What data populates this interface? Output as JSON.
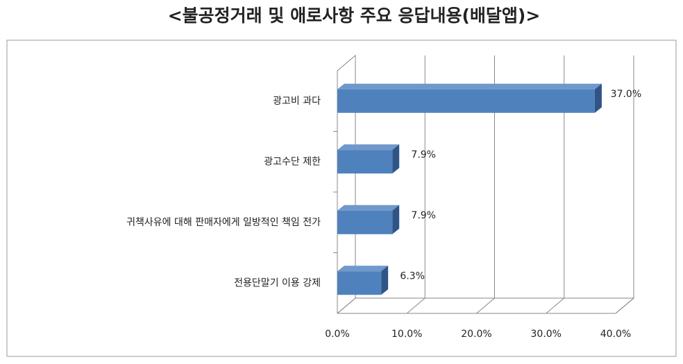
{
  "chart_data": {
    "type": "bar3d_horizontal",
    "title": "<불공정거래 및 애로사항 주요 응답내용(배달앱)>",
    "categories": [
      "광고비 과다",
      "광고수단 제한",
      "귀책사유에 대해 판매자에게 일방적인 책임 전가",
      "전용단말기 이용 강제"
    ],
    "values": [
      37.0,
      7.9,
      7.9,
      6.3
    ],
    "value_labels": [
      "37.0%",
      "7.9%",
      "7.9%",
      "6.3%"
    ],
    "color": "#4f81bd",
    "xlim": [
      0,
      40
    ],
    "xticks": [
      {
        "value": 0,
        "label": "0.0%"
      },
      {
        "value": 10,
        "label": "10.0%"
      },
      {
        "value": 20,
        "label": "20.0%"
      },
      {
        "value": 30,
        "label": "30.0%"
      },
      {
        "value": 40,
        "label": "40.0%"
      }
    ],
    "grid": true
  }
}
